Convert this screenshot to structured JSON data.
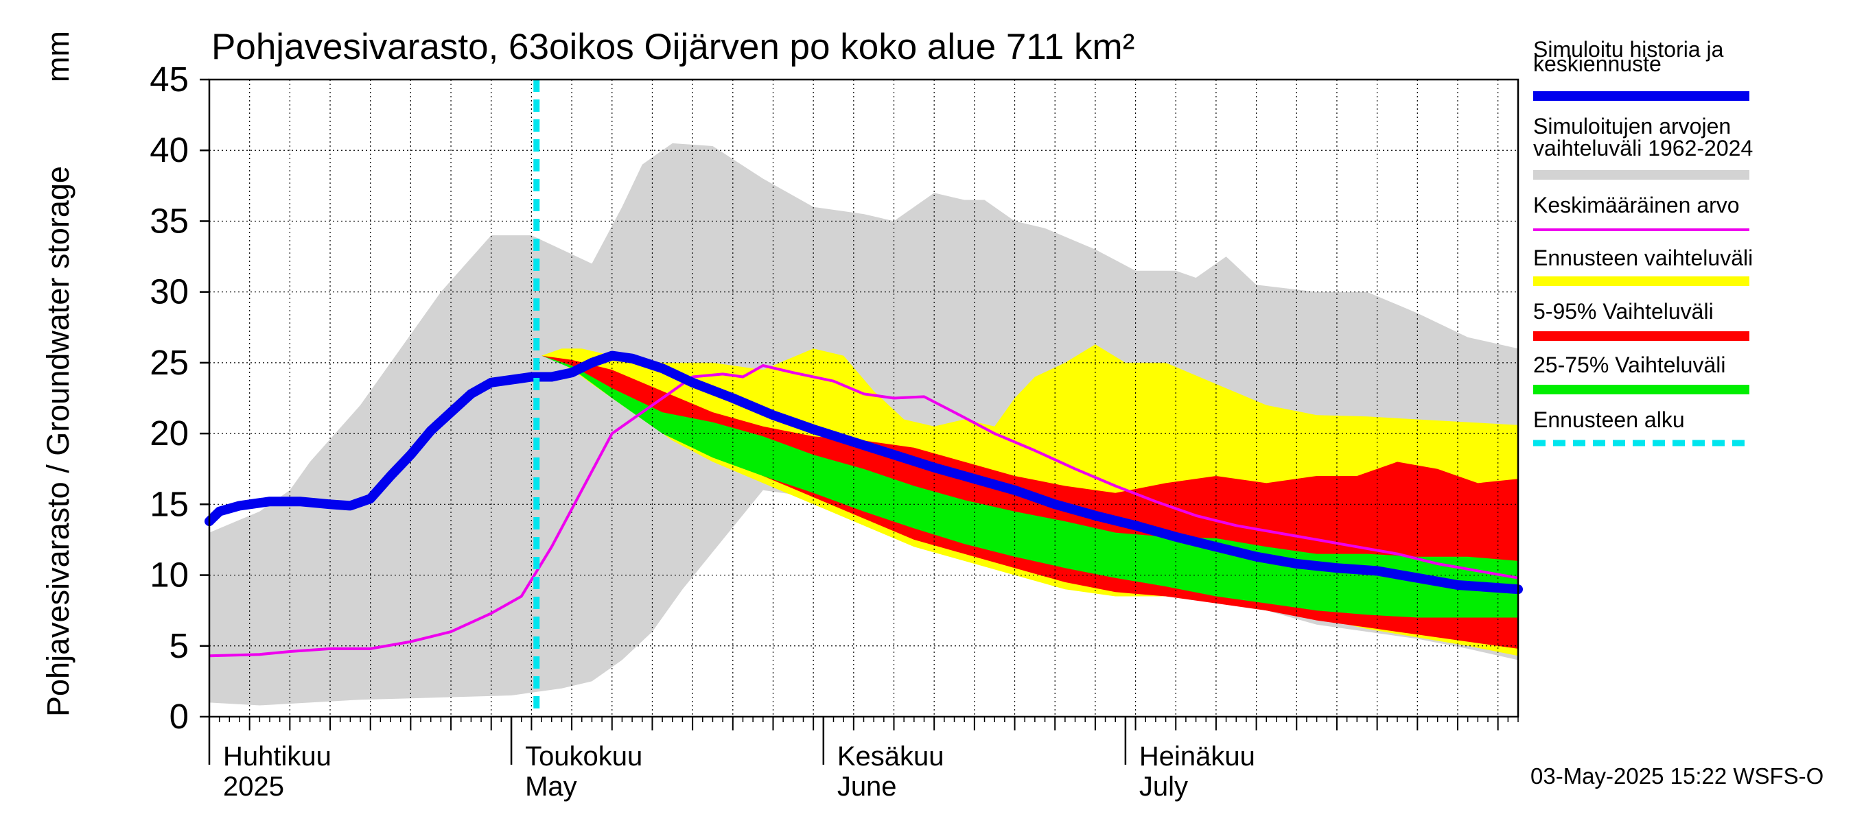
{
  "chart_data": {
    "type": "area",
    "title": "Pohjavesivarasto, 63oikos Oijärven po koko alue 711 km²",
    "ylabel": "Pohjavesivarasto / Groundwater storage",
    "yunit": "mm",
    "ylim": [
      0,
      45
    ],
    "yticks": [
      0,
      5,
      10,
      15,
      20,
      25,
      30,
      35,
      40,
      45
    ],
    "xdays": [
      0,
      130
    ],
    "month_labels": [
      {
        "day": 0,
        "fi": "Huhtikuu",
        "en": "2025"
      },
      {
        "day": 30,
        "fi": "Toukokuu",
        "en": "May"
      },
      {
        "day": 61,
        "fi": "Kesäkuu",
        "en": "June"
      },
      {
        "day": 91,
        "fi": "Heinäkuu",
        "en": "July"
      }
    ],
    "forecast_start_day": 32.5,
    "timestamp": "03-May-2025 15:22 WSFS-O",
    "legend": [
      {
        "label": [
          "Simuloitu historia ja",
          "keskiennuste"
        ],
        "color": "#0000ee",
        "style": "thick"
      },
      {
        "label": [
          "Simuloitujen arvojen",
          "vaihteluväli 1962-2024"
        ],
        "color": "#d3d3d3",
        "style": "band"
      },
      {
        "label": [
          "Keskimääräinen arvo"
        ],
        "color": "#ee00ee",
        "style": "line"
      },
      {
        "label": [
          "Ennusteen vaihteluväli"
        ],
        "color": "#ffff00",
        "style": "band"
      },
      {
        "label": [
          "5-95% Vaihteluväli"
        ],
        "color": "#ff0000",
        "style": "band"
      },
      {
        "label": [
          "25-75% Vaihteluväli"
        ],
        "color": "#00ee00",
        "style": "band"
      },
      {
        "label": [
          "Ennusteen alku"
        ],
        "color": "#00e5ee",
        "style": "dashed"
      }
    ],
    "series": {
      "hist_range": {
        "upper": [
          [
            0,
            13
          ],
          [
            5,
            14.5
          ],
          [
            8,
            16
          ],
          [
            10,
            18
          ],
          [
            15,
            22
          ],
          [
            19,
            26
          ],
          [
            23,
            30
          ],
          [
            28,
            34
          ],
          [
            32,
            34
          ],
          [
            35,
            33
          ],
          [
            38,
            32
          ],
          [
            41,
            36
          ],
          [
            43,
            39
          ],
          [
            46,
            40.5
          ],
          [
            50,
            40.3
          ],
          [
            55,
            38
          ],
          [
            60,
            36
          ],
          [
            65,
            35.5
          ],
          [
            68,
            35
          ],
          [
            72,
            37
          ],
          [
            75,
            36.5
          ],
          [
            77,
            36.5
          ],
          [
            80,
            35
          ],
          [
            83,
            34.5
          ],
          [
            88,
            33
          ],
          [
            92,
            31.5
          ],
          [
            96,
            31.5
          ],
          [
            98,
            31
          ],
          [
            101,
            32.5
          ],
          [
            104,
            30.5
          ],
          [
            110,
            30
          ],
          [
            115,
            30
          ],
          [
            120,
            28.5
          ],
          [
            125,
            26.8
          ],
          [
            130,
            26
          ]
        ],
        "lower": [
          [
            0,
            1
          ],
          [
            5,
            0.8
          ],
          [
            10,
            1
          ],
          [
            15,
            1.2
          ],
          [
            20,
            1.3
          ],
          [
            30,
            1.5
          ],
          [
            35,
            2
          ],
          [
            38,
            2.5
          ],
          [
            41,
            4
          ],
          [
            44,
            6
          ],
          [
            47,
            9
          ],
          [
            51,
            12.5
          ],
          [
            55,
            16
          ],
          [
            58,
            15.7
          ],
          [
            62,
            15
          ],
          [
            68,
            14
          ],
          [
            74,
            13
          ],
          [
            80,
            12.3
          ],
          [
            86,
            11.3
          ],
          [
            92,
            10.3
          ],
          [
            98,
            8.8
          ],
          [
            104,
            7.7
          ],
          [
            110,
            6.5
          ],
          [
            115,
            6
          ],
          [
            120,
            5.5
          ],
          [
            125,
            4.8
          ],
          [
            130,
            4
          ]
        ]
      },
      "forecast_range": {
        "upper": [
          [
            33,
            25.5
          ],
          [
            35,
            26
          ],
          [
            37,
            26
          ],
          [
            40,
            25.5
          ],
          [
            45,
            25
          ],
          [
            50,
            25
          ],
          [
            55,
            24.5
          ],
          [
            60,
            26
          ],
          [
            63,
            25.5
          ],
          [
            66,
            23
          ],
          [
            69,
            21
          ],
          [
            72,
            20.5
          ],
          [
            75,
            21
          ],
          [
            78,
            20.5
          ],
          [
            80,
            22.5
          ],
          [
            82,
            24
          ],
          [
            85,
            25
          ],
          [
            88,
            26.3
          ],
          [
            91,
            25
          ],
          [
            95,
            25
          ],
          [
            100,
            23.5
          ],
          [
            105,
            22
          ],
          [
            110,
            21.3
          ],
          [
            115,
            21.2
          ],
          [
            120,
            21
          ],
          [
            125,
            20.8
          ],
          [
            130,
            20.6
          ]
        ],
        "lower": [
          [
            33,
            25.5
          ],
          [
            35,
            25
          ],
          [
            38,
            23.5
          ],
          [
            42,
            21.5
          ],
          [
            46,
            19.5
          ],
          [
            50,
            18
          ],
          [
            55,
            16.5
          ],
          [
            60,
            15
          ],
          [
            65,
            13.5
          ],
          [
            70,
            12
          ],
          [
            75,
            11
          ],
          [
            80,
            10
          ],
          [
            85,
            9
          ],
          [
            90,
            8.5
          ],
          [
            95,
            8.5
          ],
          [
            100,
            8.2
          ],
          [
            105,
            7.5
          ],
          [
            110,
            7
          ],
          [
            115,
            6.2
          ],
          [
            120,
            5.6
          ],
          [
            125,
            5
          ],
          [
            130,
            4.3
          ]
        ]
      },
      "p5_95": {
        "upper": [
          [
            33,
            25.5
          ],
          [
            36,
            25.2
          ],
          [
            40,
            24.5
          ],
          [
            45,
            23
          ],
          [
            50,
            21.5
          ],
          [
            55,
            20.5
          ],
          [
            60,
            19.8
          ],
          [
            65,
            19.5
          ],
          [
            70,
            19
          ],
          [
            75,
            18
          ],
          [
            80,
            17
          ],
          [
            85,
            16.3
          ],
          [
            90,
            15.8
          ],
          [
            95,
            16.5
          ],
          [
            100,
            17
          ],
          [
            105,
            16.5
          ],
          [
            110,
            17
          ],
          [
            114,
            17
          ],
          [
            118,
            18
          ],
          [
            122,
            17.5
          ],
          [
            126,
            16.5
          ],
          [
            130,
            16.8
          ]
        ],
        "lower": [
          [
            33,
            25.5
          ],
          [
            36,
            24.8
          ],
          [
            40,
            23
          ],
          [
            45,
            20.5
          ],
          [
            50,
            18.5
          ],
          [
            55,
            17
          ],
          [
            60,
            15.5
          ],
          [
            65,
            14
          ],
          [
            70,
            12.5
          ],
          [
            75,
            11.5
          ],
          [
            80,
            10.5
          ],
          [
            85,
            9.5
          ],
          [
            90,
            8.8
          ],
          [
            95,
            8.5
          ],
          [
            100,
            8
          ],
          [
            105,
            7.5
          ],
          [
            110,
            6.8
          ],
          [
            115,
            6.3
          ],
          [
            120,
            5.8
          ],
          [
            125,
            5.3
          ],
          [
            130,
            4.8
          ]
        ]
      },
      "p25_75": {
        "upper": [
          [
            33,
            25.5
          ],
          [
            36,
            24.8
          ],
          [
            40,
            23.2
          ],
          [
            45,
            21.5
          ],
          [
            50,
            20.8
          ],
          [
            55,
            19.8
          ],
          [
            60,
            18.5
          ],
          [
            65,
            17.5
          ],
          [
            70,
            16.3
          ],
          [
            75,
            15.3
          ],
          [
            80,
            14.5
          ],
          [
            85,
            13.8
          ],
          [
            90,
            13
          ],
          [
            95,
            12.7
          ],
          [
            100,
            12.6
          ],
          [
            105,
            12
          ],
          [
            110,
            11.5
          ],
          [
            115,
            11.5
          ],
          [
            120,
            11.3
          ],
          [
            125,
            11.3
          ],
          [
            130,
            11
          ]
        ],
        "lower": [
          [
            33,
            25.5
          ],
          [
            36,
            24.6
          ],
          [
            40,
            22.5
          ],
          [
            45,
            20
          ],
          [
            50,
            18.3
          ],
          [
            55,
            17
          ],
          [
            60,
            15.8
          ],
          [
            65,
            14.5
          ],
          [
            70,
            13.3
          ],
          [
            75,
            12.2
          ],
          [
            80,
            11.3
          ],
          [
            85,
            10.5
          ],
          [
            90,
            9.8
          ],
          [
            95,
            9.2
          ],
          [
            100,
            8.5
          ],
          [
            105,
            8
          ],
          [
            110,
            7.5
          ],
          [
            115,
            7.2
          ],
          [
            120,
            7
          ],
          [
            125,
            7
          ],
          [
            130,
            7
          ]
        ]
      },
      "mean": [
        [
          0,
          4.3
        ],
        [
          5,
          4.4
        ],
        [
          8,
          4.6
        ],
        [
          12,
          4.8
        ],
        [
          16,
          4.8
        ],
        [
          20,
          5.3
        ],
        [
          24,
          6
        ],
        [
          28,
          7.3
        ],
        [
          31,
          8.5
        ],
        [
          34,
          12
        ],
        [
          37,
          16
        ],
        [
          40,
          20
        ],
        [
          43,
          21.5
        ],
        [
          46,
          23
        ],
        [
          48,
          24
        ],
        [
          51,
          24.2
        ],
        [
          53,
          24
        ],
        [
          55,
          24.8
        ],
        [
          58,
          24.3
        ],
        [
          62,
          23.7
        ],
        [
          65,
          22.8
        ],
        [
          68,
          22.5
        ],
        [
          71,
          22.6
        ],
        [
          74,
          21.5
        ],
        [
          78,
          20
        ],
        [
          82,
          18.8
        ],
        [
          86,
          17.5
        ],
        [
          90,
          16.3
        ],
        [
          94,
          15.2
        ],
        [
          98,
          14.2
        ],
        [
          102,
          13.5
        ],
        [
          106,
          13
        ],
        [
          110,
          12.5
        ],
        [
          114,
          12
        ],
        [
          118,
          11.5
        ],
        [
          122,
          10.8
        ],
        [
          126,
          10.3
        ],
        [
          130,
          9.8
        ]
      ],
      "median": [
        [
          0,
          13.8
        ],
        [
          1,
          14.5
        ],
        [
          3,
          14.9
        ],
        [
          6,
          15.2
        ],
        [
          9,
          15.2
        ],
        [
          12,
          15
        ],
        [
          14,
          14.9
        ],
        [
          16,
          15.4
        ],
        [
          18,
          17
        ],
        [
          20,
          18.5
        ],
        [
          22,
          20.2
        ],
        [
          24,
          21.5
        ],
        [
          26,
          22.8
        ],
        [
          28,
          23.6
        ],
        [
          30,
          23.8
        ],
        [
          32,
          24
        ],
        [
          34,
          24
        ],
        [
          36,
          24.3
        ],
        [
          38,
          25
        ],
        [
          40,
          25.5
        ],
        [
          42,
          25.3
        ],
        [
          45,
          24.6
        ],
        [
          48,
          23.6
        ],
        [
          52,
          22.5
        ],
        [
          56,
          21.3
        ],
        [
          60,
          20.3
        ],
        [
          64,
          19.4
        ],
        [
          68,
          18.5
        ],
        [
          72,
          17.6
        ],
        [
          76,
          16.8
        ],
        [
          80,
          16
        ],
        [
          84,
          15
        ],
        [
          88,
          14.2
        ],
        [
          92,
          13.5
        ],
        [
          96,
          12.7
        ],
        [
          100,
          12
        ],
        [
          104,
          11.3
        ],
        [
          108,
          10.8
        ],
        [
          112,
          10.5
        ],
        [
          116,
          10.3
        ],
        [
          120,
          9.8
        ],
        [
          124,
          9.3
        ],
        [
          128,
          9.1
        ],
        [
          130,
          9
        ]
      ]
    }
  }
}
